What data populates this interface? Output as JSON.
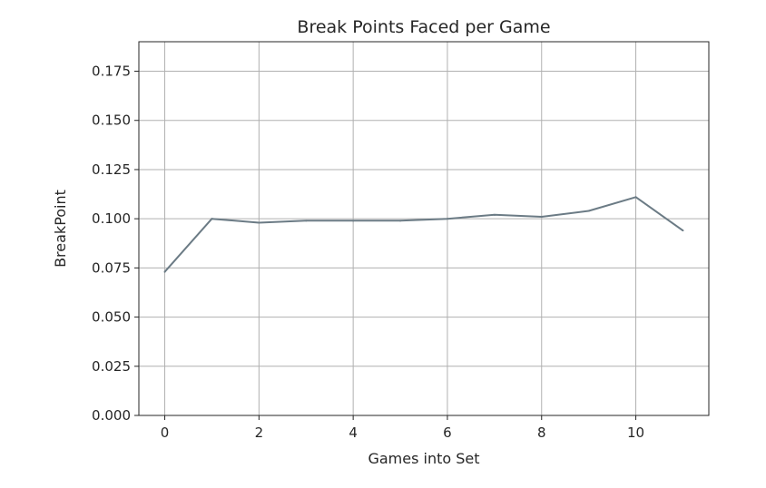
{
  "chart_data": {
    "type": "line",
    "title": "Break Points Faced per Game",
    "xlabel": "Games into Set",
    "ylabel": "BreakPoint",
    "xlim": [
      -0.55,
      11.55
    ],
    "ylim": [
      0.0,
      0.19
    ],
    "x_ticks": [
      0,
      2,
      4,
      6,
      8,
      10
    ],
    "y_ticks": [
      0.0,
      0.025,
      0.05,
      0.075,
      0.1,
      0.125,
      0.15,
      0.175
    ],
    "y_tick_labels": [
      "0.000",
      "0.025",
      "0.050",
      "0.075",
      "0.100",
      "0.125",
      "0.150",
      "0.175"
    ],
    "grid": true,
    "line_color": "#6b7b85",
    "series": [
      {
        "x": [
          0,
          1,
          2,
          3,
          4,
          5,
          6,
          7,
          8,
          9,
          10,
          11
        ],
        "values": [
          0.073,
          0.1,
          0.098,
          0.099,
          0.099,
          0.099,
          0.1,
          0.102,
          0.101,
          0.104,
          0.111,
          0.094
        ]
      }
    ]
  }
}
